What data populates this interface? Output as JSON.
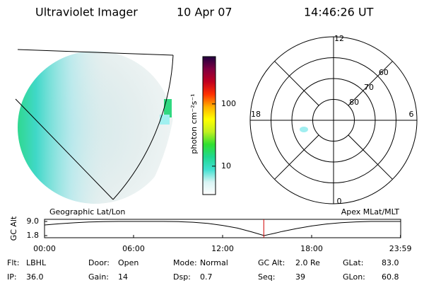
{
  "header": {
    "title": "Ultraviolet Imager",
    "date": "10 Apr 07",
    "time": "14:46:26 UT"
  },
  "colorbar": {
    "label": "photon cm⁻²s⁻¹",
    "lim": [
      3.5,
      575
    ],
    "log": true,
    "ticks": [
      10,
      100
    ],
    "colors": [
      "#ffffff",
      "#d8f4f4",
      "#40e0d0",
      "#20d890",
      "#30e030",
      "#c0f020",
      "#ffff00",
      "#ffb000",
      "#ff3000",
      "#c00020",
      "#800040",
      "#200040"
    ]
  },
  "polar": {
    "lat_lim": [
      90,
      50
    ],
    "rings": [
      80,
      70,
      60
    ],
    "mlt_ticks": [
      12,
      18,
      6,
      0
    ]
  },
  "altitude": {
    "ylabel": "GC Alt",
    "left_title": "Geographic Lat/Lon",
    "right_title": "Apex MLat/MLT",
    "ylim": [
      1.8,
      9.0
    ],
    "yticks": [
      {
        "value": 9.0,
        "label": "9.0"
      },
      {
        "value": 1.8,
        "label": "1.8"
      }
    ],
    "xlim": [
      0,
      24
    ],
    "xticks": [
      {
        "value": 0,
        "label": "00:00"
      },
      {
        "value": 6,
        "label": "06:00"
      },
      {
        "value": 12,
        "label": "12:00"
      },
      {
        "value": 18,
        "label": "18:00"
      },
      {
        "value": 23.983,
        "label": "23:59"
      }
    ],
    "x": [
      0,
      1,
      2,
      3,
      4,
      5,
      6,
      7,
      8,
      9,
      10,
      11,
      12,
      13,
      14,
      14.8,
      15.5,
      16,
      17,
      18,
      19,
      20,
      21,
      22,
      23,
      24
    ],
    "values": [
      7.2,
      7.8,
      8.3,
      8.7,
      8.9,
      9.0,
      9.0,
      9.0,
      9.0,
      8.9,
      8.6,
      8.0,
      7.0,
      5.6,
      3.6,
      1.8,
      3.0,
      3.9,
      5.4,
      6.7,
      7.7,
      8.4,
      8.8,
      9.0,
      9.0,
      9.0
    ],
    "marker": 14.774,
    "marker_color": "#d00000"
  },
  "footer": {
    "rows": [
      [
        {
          "label": "Flt:",
          "value": "LBHL"
        },
        {
          "label": "Door:",
          "value": "Open"
        },
        {
          "label": "Mode:",
          "value": "Normal"
        },
        {
          "label": "GC Alt:",
          "value": "2.0 Re"
        },
        {
          "label": "GLat:",
          "value": "83.0"
        }
      ],
      [
        {
          "label": "IP:",
          "value": "36.0"
        },
        {
          "label": "Gain:",
          "value": "14"
        },
        {
          "label": "Dsp:",
          "value": "0.7"
        },
        {
          "label": "Seq:",
          "value": "39"
        },
        {
          "label": "GLon:",
          "value": "60.8"
        }
      ]
    ]
  }
}
